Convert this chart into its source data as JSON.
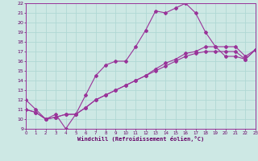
{
  "background_color": "#cde8e4",
  "grid_color": "#b0d8d4",
  "line_color": "#993399",
  "xlabel": "Windchill (Refroidissement éolien,°C)",
  "xlim": [
    0,
    23
  ],
  "ylim": [
    9,
    22
  ],
  "xticks": [
    0,
    1,
    2,
    3,
    4,
    5,
    6,
    7,
    8,
    9,
    10,
    11,
    12,
    13,
    14,
    15,
    16,
    17,
    18,
    19,
    20,
    21,
    22,
    23
  ],
  "yticks": [
    9,
    10,
    11,
    12,
    13,
    14,
    15,
    16,
    17,
    18,
    19,
    20,
    21,
    22
  ],
  "line1_x": [
    0,
    1,
    2,
    3,
    4,
    5,
    6,
    7,
    8,
    9,
    10,
    11,
    12,
    13,
    14,
    15,
    16,
    17,
    18,
    19,
    20,
    21,
    22,
    23
  ],
  "line1_y": [
    12.0,
    11.0,
    10.0,
    10.5,
    9.0,
    10.5,
    12.5,
    14.5,
    15.6,
    16.0,
    16.0,
    17.5,
    19.2,
    21.2,
    21.0,
    21.5,
    22.0,
    21.0,
    19.0,
    17.5,
    16.5,
    16.5,
    16.2,
    17.2
  ],
  "line2_x": [
    0,
    1,
    2,
    3,
    4,
    5,
    6,
    7,
    8,
    9,
    10,
    11,
    12,
    13,
    14,
    15,
    16,
    17,
    18,
    19,
    20,
    21,
    22,
    23
  ],
  "line2_y": [
    11.0,
    10.7,
    10.0,
    10.2,
    10.5,
    10.5,
    11.2,
    12.0,
    12.5,
    13.0,
    13.5,
    14.0,
    14.5,
    15.2,
    15.8,
    16.2,
    16.8,
    17.0,
    17.5,
    17.5,
    17.5,
    17.5,
    16.5,
    17.2
  ],
  "line3_x": [
    0,
    1,
    2,
    3,
    4,
    5,
    6,
    7,
    8,
    9,
    10,
    11,
    12,
    13,
    14,
    15,
    16,
    17,
    18,
    19,
    20,
    21,
    22,
    23
  ],
  "line3_y": [
    11.0,
    10.7,
    10.0,
    10.2,
    10.5,
    10.5,
    11.2,
    12.0,
    12.5,
    13.0,
    13.5,
    14.0,
    14.5,
    15.0,
    15.5,
    16.0,
    16.5,
    16.8,
    17.0,
    17.0,
    17.0,
    17.0,
    16.2,
    17.2
  ]
}
